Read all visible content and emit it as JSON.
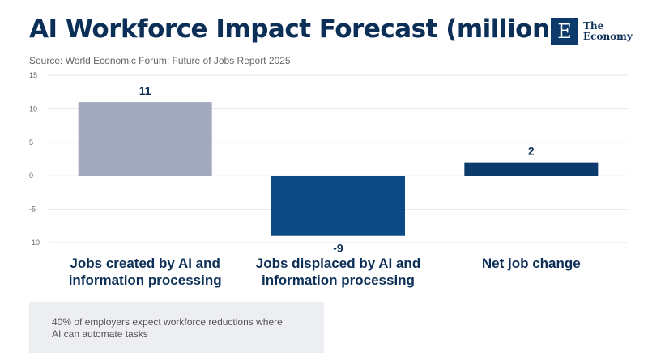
{
  "header": {
    "title": "AI Workforce Impact Forecast (millions)",
    "source": "Source: World Economic Forum; Future of Jobs Report 2025"
  },
  "logo": {
    "mark": "E",
    "line1": "The",
    "line2": "Economy"
  },
  "note": {
    "line1": "40% of employers expect workforce reductions where",
    "line2": "AI can automate tasks"
  },
  "colors": {
    "created": "#a2a9bc",
    "displaced": "#0c4a85",
    "net": "#0c3a6b",
    "label": "#0c2f57"
  },
  "chart_data": {
    "type": "bar",
    "title": "AI Workforce Impact Forecast (millions)",
    "categories": [
      [
        "Jobs created by AI and",
        "information processing"
      ],
      [
        "Jobs displaced by AI and",
        "information processing"
      ],
      [
        "Net job change"
      ]
    ],
    "values": [
      11,
      -9,
      2
    ],
    "ylim": [
      -10,
      15
    ],
    "yticks": [
      15,
      10,
      5,
      0,
      -5,
      -10
    ],
    "xlabel": "",
    "ylabel": ""
  }
}
